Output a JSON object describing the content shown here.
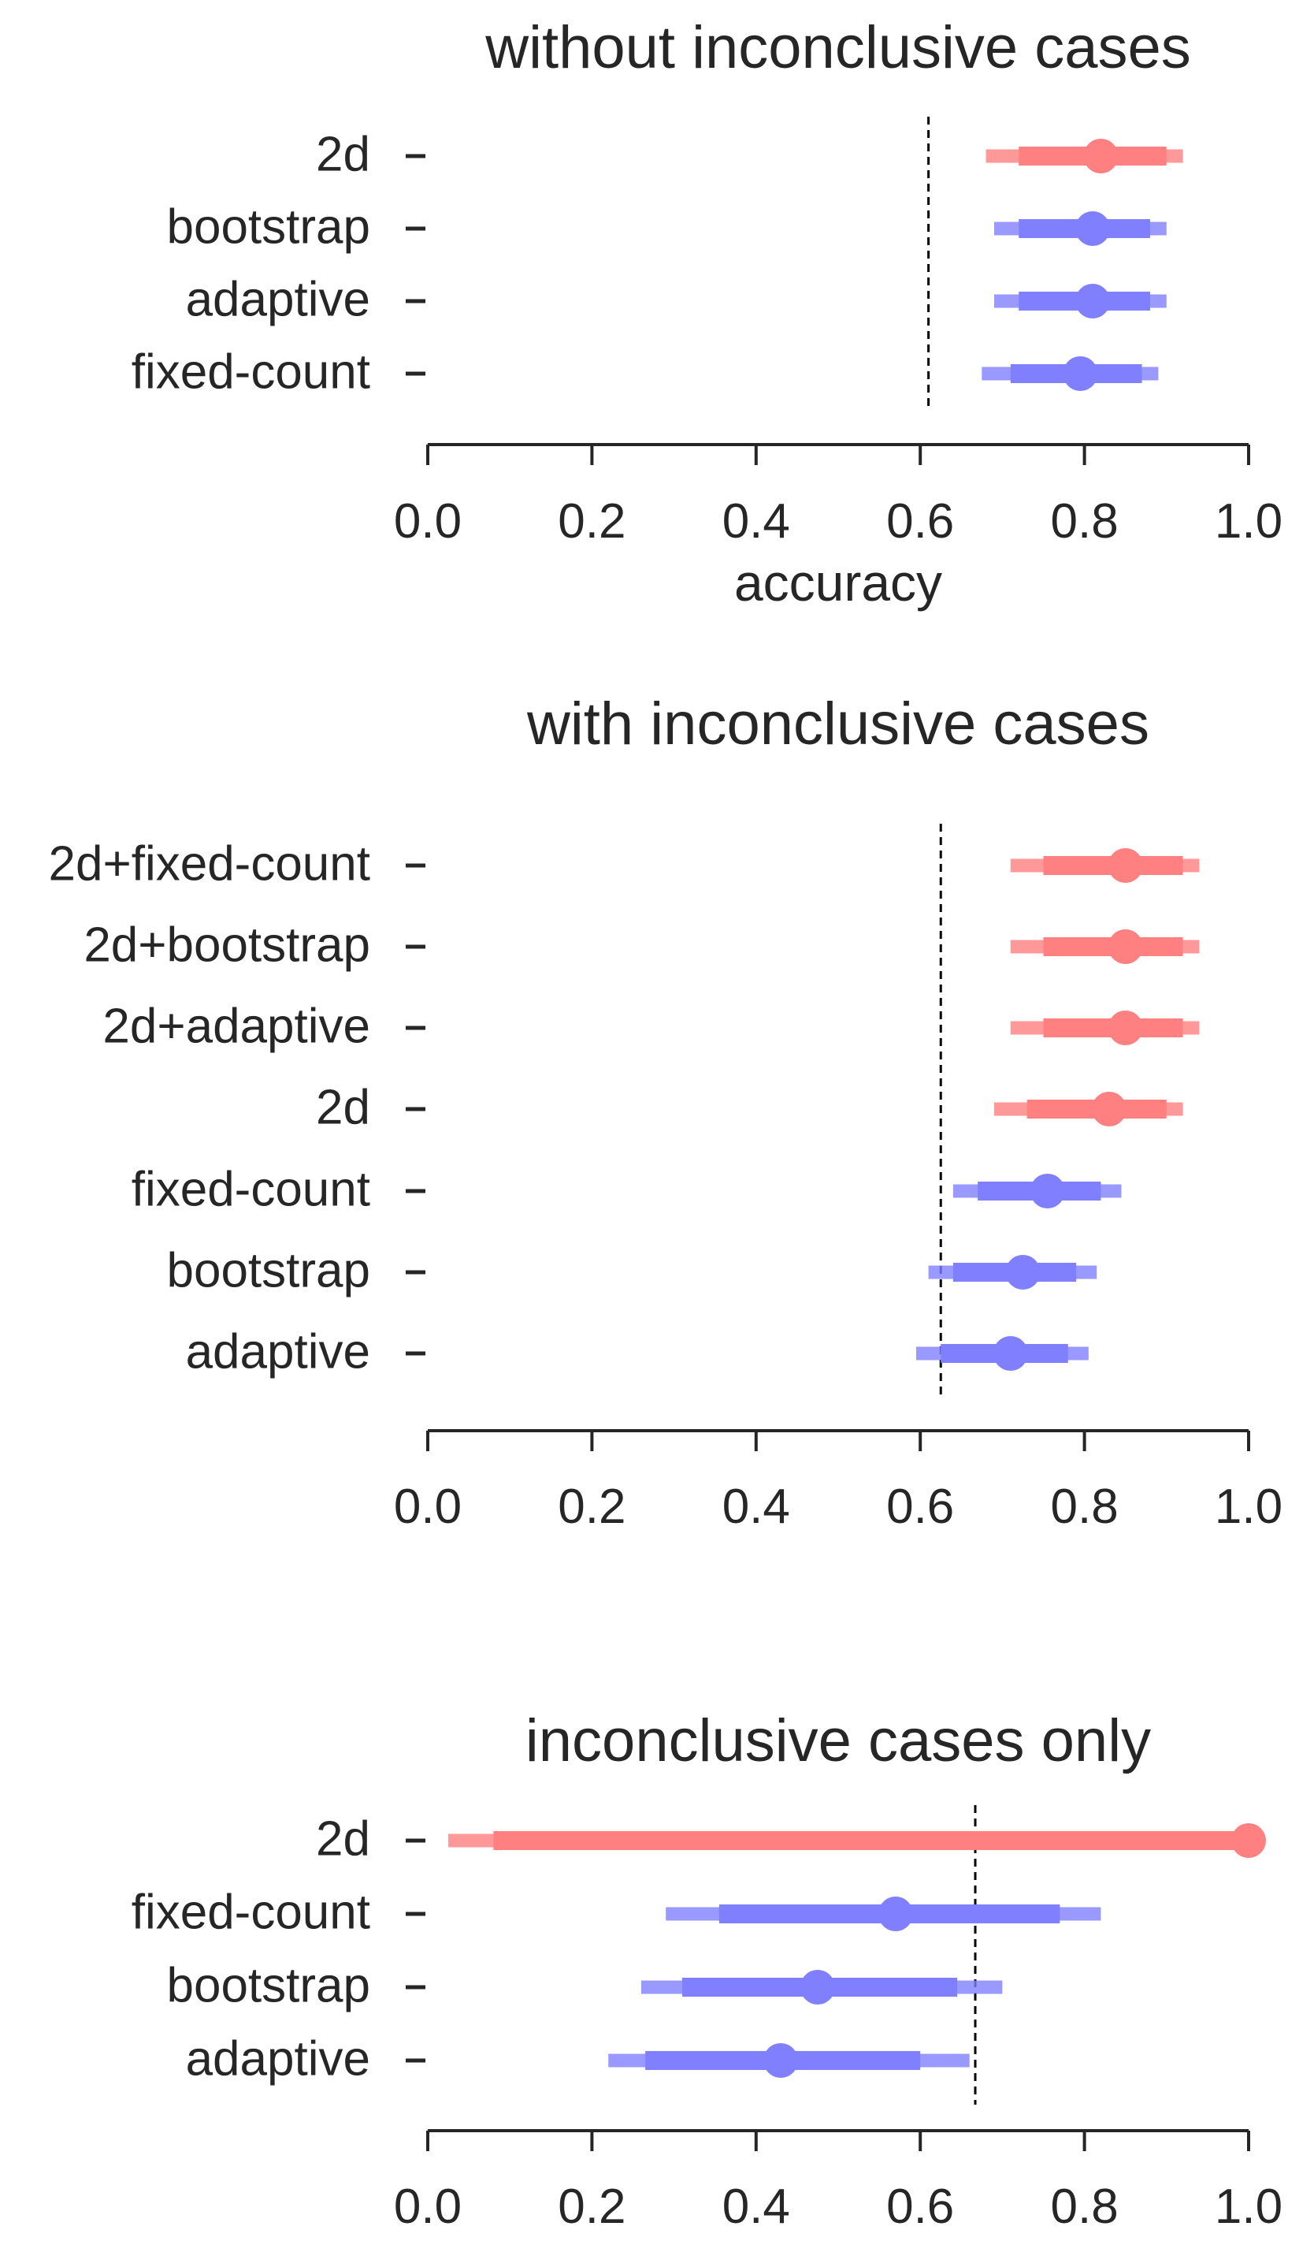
{
  "colors": {
    "red": "#ff8080",
    "blue": "#8080ff",
    "axis": "#262626",
    "ref_line": "#000000"
  },
  "chart_data": [
    {
      "type": "forest",
      "title": "without inconclusive cases",
      "xlabel": "accuracy",
      "xlim": [
        0.0,
        1.0
      ],
      "xticks": [
        "0.0",
        "0.2",
        "0.4",
        "0.6",
        "0.8",
        "1.0"
      ],
      "reference_line": 0.61,
      "categories": [
        {
          "label": "2d",
          "color": "red",
          "point": 0.82,
          "inner": [
            0.72,
            0.9
          ],
          "outer": [
            0.68,
            0.92
          ]
        },
        {
          "label": "bootstrap",
          "color": "blue",
          "point": 0.81,
          "inner": [
            0.72,
            0.88
          ],
          "outer": [
            0.69,
            0.9
          ]
        },
        {
          "label": "adaptive",
          "color": "blue",
          "point": 0.81,
          "inner": [
            0.72,
            0.88
          ],
          "outer": [
            0.69,
            0.9
          ]
        },
        {
          "label": "fixed-count",
          "color": "blue",
          "point": 0.795,
          "inner": [
            0.71,
            0.87
          ],
          "outer": [
            0.675,
            0.89
          ]
        }
      ]
    },
    {
      "type": "forest",
      "title": "with inconclusive cases",
      "xlabel": "",
      "xlim": [
        0.0,
        1.0
      ],
      "xticks": [
        "0.0",
        "0.2",
        "0.4",
        "0.6",
        "0.8",
        "1.0"
      ],
      "reference_line": 0.625,
      "categories": [
        {
          "label": "2d+fixed-count",
          "color": "red",
          "point": 0.85,
          "inner": [
            0.75,
            0.92
          ],
          "outer": [
            0.71,
            0.94
          ]
        },
        {
          "label": "2d+bootstrap",
          "color": "red",
          "point": 0.85,
          "inner": [
            0.75,
            0.92
          ],
          "outer": [
            0.71,
            0.94
          ]
        },
        {
          "label": "2d+adaptive",
          "color": "red",
          "point": 0.85,
          "inner": [
            0.75,
            0.92
          ],
          "outer": [
            0.71,
            0.94
          ]
        },
        {
          "label": "2d",
          "color": "red",
          "point": 0.83,
          "inner": [
            0.73,
            0.9
          ],
          "outer": [
            0.69,
            0.92
          ]
        },
        {
          "label": "fixed-count",
          "color": "blue",
          "point": 0.755,
          "inner": [
            0.67,
            0.82
          ],
          "outer": [
            0.64,
            0.845
          ]
        },
        {
          "label": "bootstrap",
          "color": "blue",
          "point": 0.725,
          "inner": [
            0.64,
            0.79
          ],
          "outer": [
            0.61,
            0.815
          ]
        },
        {
          "label": "adaptive",
          "color": "blue",
          "point": 0.71,
          "inner": [
            0.625,
            0.78
          ],
          "outer": [
            0.595,
            0.805
          ]
        }
      ]
    },
    {
      "type": "forest",
      "title": "inconclusive cases only",
      "xlabel": "",
      "xlim": [
        0.0,
        1.0
      ],
      "xticks": [
        "0.0",
        "0.2",
        "0.4",
        "0.6",
        "0.8",
        "1.0"
      ],
      "reference_line": 0.667,
      "categories": [
        {
          "label": "2d",
          "color": "red",
          "point": 1.0,
          "inner": [
            0.08,
            1.0
          ],
          "outer": [
            0.025,
            1.0
          ]
        },
        {
          "label": "fixed-count",
          "color": "blue",
          "point": 0.57,
          "inner": [
            0.355,
            0.77
          ],
          "outer": [
            0.29,
            0.82
          ]
        },
        {
          "label": "bootstrap",
          "color": "blue",
          "point": 0.475,
          "inner": [
            0.31,
            0.645
          ],
          "outer": [
            0.26,
            0.7
          ]
        },
        {
          "label": "adaptive",
          "color": "blue",
          "point": 0.43,
          "inner": [
            0.265,
            0.6
          ],
          "outer": [
            0.22,
            0.66
          ]
        }
      ]
    }
  ]
}
